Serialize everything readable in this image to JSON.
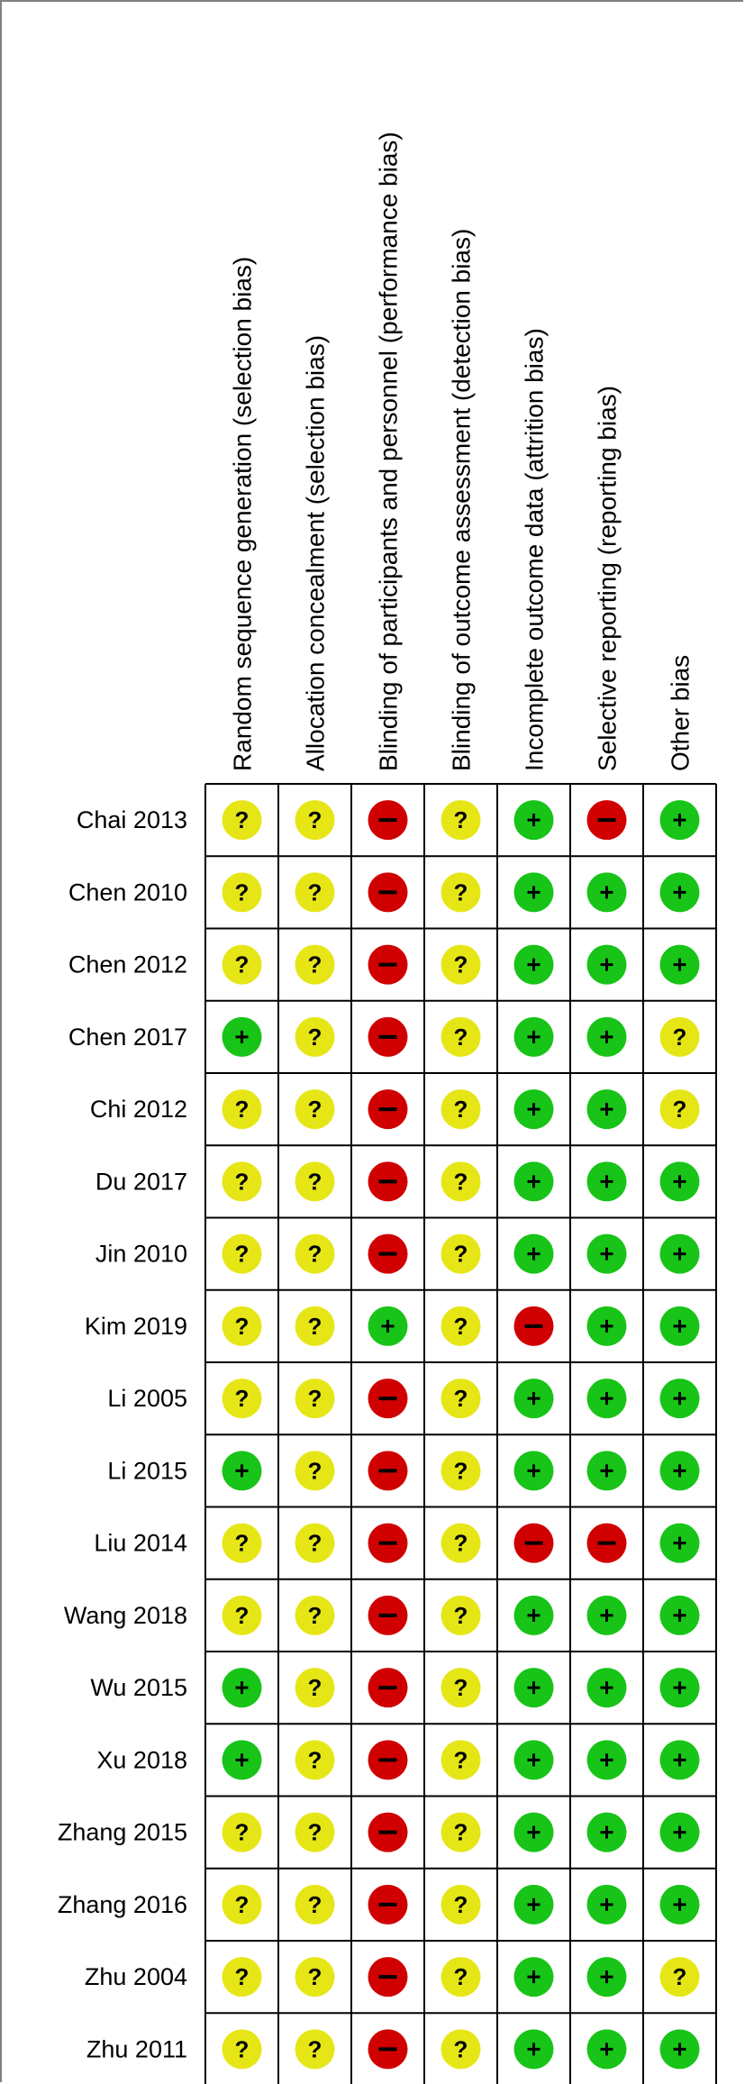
{
  "chart_data": {
    "type": "table",
    "columns": [
      "Random sequence generation (selection bias)",
      "Allocation concealment (selection bias)",
      "Blinding of participants and personnel (performance bias)",
      "Blinding of outcome assessment (detection bias)",
      "Incomplete outcome data (attrition bias)",
      "Selective reporting (reporting bias)",
      "Other bias"
    ],
    "rows": [
      {
        "study": "Chai 2013",
        "ratings": [
          "unclear",
          "unclear",
          "high",
          "unclear",
          "low",
          "high",
          "low"
        ]
      },
      {
        "study": "Chen 2010",
        "ratings": [
          "unclear",
          "unclear",
          "high",
          "unclear",
          "low",
          "low",
          "low"
        ]
      },
      {
        "study": "Chen 2012",
        "ratings": [
          "unclear",
          "unclear",
          "high",
          "unclear",
          "low",
          "low",
          "low"
        ]
      },
      {
        "study": "Chen 2017",
        "ratings": [
          "low",
          "unclear",
          "high",
          "unclear",
          "low",
          "low",
          "unclear"
        ]
      },
      {
        "study": "Chi 2012",
        "ratings": [
          "unclear",
          "unclear",
          "high",
          "unclear",
          "low",
          "low",
          "unclear"
        ]
      },
      {
        "study": "Du 2017",
        "ratings": [
          "unclear",
          "unclear",
          "high",
          "unclear",
          "low",
          "low",
          "low"
        ]
      },
      {
        "study": "Jin 2010",
        "ratings": [
          "unclear",
          "unclear",
          "high",
          "unclear",
          "low",
          "low",
          "low"
        ]
      },
      {
        "study": "Kim 2019",
        "ratings": [
          "unclear",
          "unclear",
          "low",
          "unclear",
          "high",
          "low",
          "low"
        ]
      },
      {
        "study": "Li 2005",
        "ratings": [
          "unclear",
          "unclear",
          "high",
          "unclear",
          "low",
          "low",
          "low"
        ]
      },
      {
        "study": "Li 2015",
        "ratings": [
          "low",
          "unclear",
          "high",
          "unclear",
          "low",
          "low",
          "low"
        ]
      },
      {
        "study": "Liu 2014",
        "ratings": [
          "unclear",
          "unclear",
          "high",
          "unclear",
          "high",
          "high",
          "low"
        ]
      },
      {
        "study": "Wang 2018",
        "ratings": [
          "unclear",
          "unclear",
          "high",
          "unclear",
          "low",
          "low",
          "low"
        ]
      },
      {
        "study": "Wu 2015",
        "ratings": [
          "low",
          "unclear",
          "high",
          "unclear",
          "low",
          "low",
          "low"
        ]
      },
      {
        "study": "Xu 2018",
        "ratings": [
          "low",
          "unclear",
          "high",
          "unclear",
          "low",
          "low",
          "low"
        ]
      },
      {
        "study": "Zhang 2015",
        "ratings": [
          "unclear",
          "unclear",
          "high",
          "unclear",
          "low",
          "low",
          "low"
        ]
      },
      {
        "study": "Zhang 2016",
        "ratings": [
          "unclear",
          "unclear",
          "high",
          "unclear",
          "low",
          "low",
          "low"
        ]
      },
      {
        "study": "Zhu 2004",
        "ratings": [
          "unclear",
          "unclear",
          "high",
          "unclear",
          "low",
          "low",
          "unclear"
        ]
      },
      {
        "study": "Zhu 2011",
        "ratings": [
          "unclear",
          "unclear",
          "high",
          "unclear",
          "low",
          "low",
          "low"
        ]
      }
    ],
    "legend_symbols": {
      "low": {
        "symbol": "+",
        "color": "#17c417"
      },
      "unclear": {
        "symbol": "?",
        "color": "#e6e617"
      },
      "high": {
        "symbol": "−",
        "color": "#d10000"
      }
    }
  }
}
